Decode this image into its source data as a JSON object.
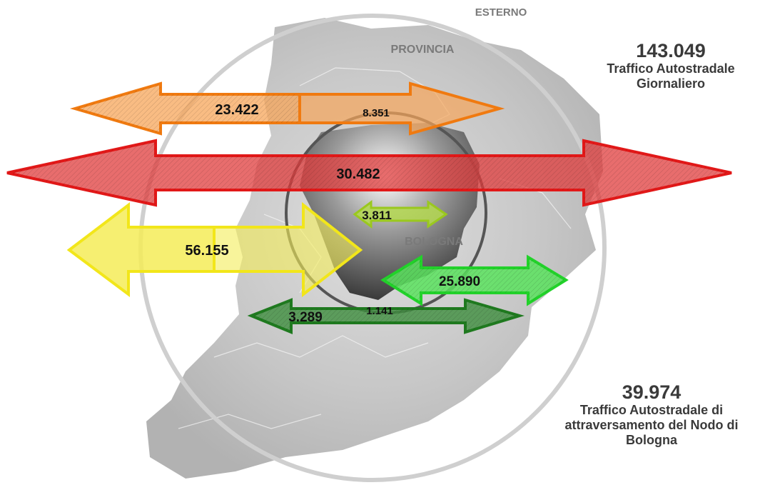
{
  "zones": {
    "esterno": "ESTERNO",
    "provincia": "PROVINCIA",
    "bologna": "BOLOGNA"
  },
  "flows": {
    "orange_main": "23.422",
    "orange_inner": "8.351",
    "red": "30.482",
    "lightgreen": "3.811",
    "yellow": "56.155",
    "green": "25.890",
    "darkgreen_main": "3.289",
    "darkgreen_inner": "1.141"
  },
  "summary": {
    "total_value": "143.049",
    "total_label_1": "Traffico Autostradale",
    "total_label_2": "Giornaliero",
    "through_value": "39.974",
    "through_label_1": "Traffico Autostradale di",
    "through_label_2": "attraversamento del Nodo di",
    "through_label_3": "Bologna"
  },
  "colors": {
    "orange": "#f07a10",
    "red": "#e21818",
    "yellow": "#f2e61a",
    "lightgreen": "#9ac81e",
    "green": "#22d22a",
    "darkgreen": "#1f7a1f",
    "map_gray": "#b5b5b5",
    "ring_gray": "#cfcfcf"
  }
}
